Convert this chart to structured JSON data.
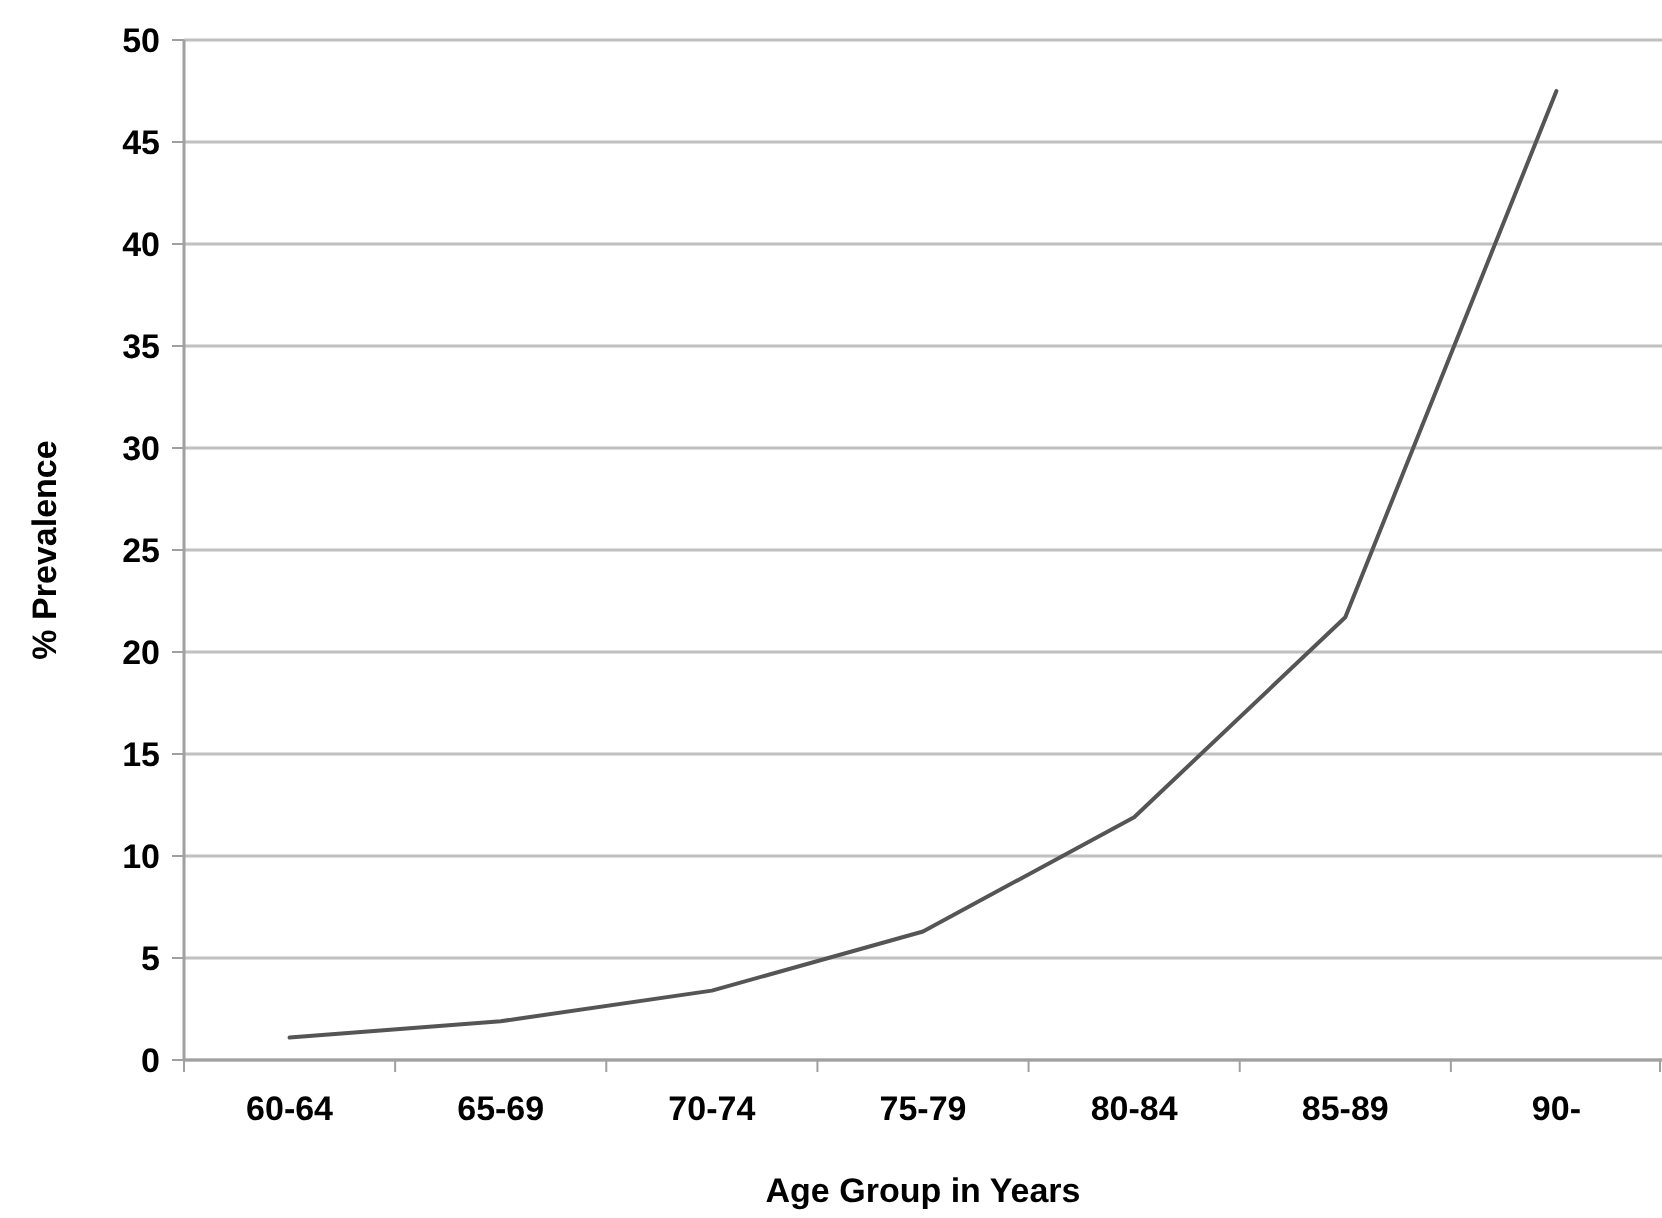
{
  "chart_data": {
    "type": "line",
    "xlabel": "Age Group in Years",
    "ylabel": "% Prevalence",
    "categories": [
      "60-64",
      "65-69",
      "70-74",
      "75-79",
      "80-84",
      "85-89",
      "90-"
    ],
    "series": [
      {
        "color": "#555555",
        "values": [
          1.1,
          1.9,
          3.4,
          6.3,
          11.9,
          21.7,
          47.5
        ]
      }
    ],
    "ylim": [
      0,
      50
    ],
    "yticks": [
      0,
      5,
      10,
      15,
      20,
      25,
      30,
      35,
      40,
      45,
      50
    ],
    "grid": "y",
    "marker": "none",
    "line_style": "solid"
  }
}
